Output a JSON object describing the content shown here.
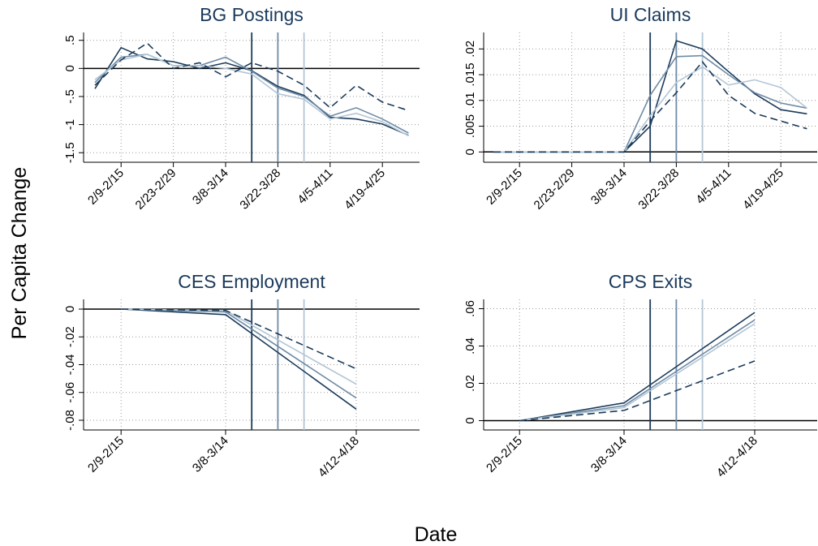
{
  "ylabel": "Per Capita Change",
  "xlabel": "Date",
  "chart_data": [
    {
      "type": "line",
      "title": "BG Postings",
      "categories": [
        null,
        "2/9-2/15",
        null,
        "2/23-2/29",
        null,
        "3/8-3/14",
        null,
        "3/22-3/28",
        null,
        "4/5-4/11",
        null,
        "4/19-4/25",
        null
      ],
      "ylim": [
        -1.67,
        0.64
      ],
      "yticks": [
        {
          "value": 0.5,
          "label": ".5"
        },
        0,
        {
          "value": -0.5,
          "label": "-.5"
        },
        -1,
        -1.5
      ],
      "grid": true,
      "zero_line": true,
      "series": [
        {
          "color": "#1b3b5a",
          "dash": false,
          "values": [
            -0.36,
            0.37,
            0.17,
            0.12,
            0.0,
            0.1,
            -0.04,
            -0.32,
            -0.48,
            -0.87,
            -0.9,
            -0.99,
            -1.19
          ]
        },
        {
          "color": "#6f8ba5",
          "dash": false,
          "values": [
            -0.25,
            0.2,
            0.25,
            0.05,
            0.05,
            0.2,
            -0.05,
            -0.35,
            -0.5,
            -0.85,
            -0.7,
            -0.9,
            -1.15
          ]
        },
        {
          "color": "#b3c6d6",
          "dash": false,
          "values": [
            -0.2,
            0.15,
            0.25,
            0.05,
            0.05,
            0.0,
            -0.1,
            -0.45,
            -0.55,
            -0.9,
            -0.8,
            -0.95,
            -1.2
          ]
        },
        {
          "color": "#1b3b5a",
          "dash": true,
          "values": [
            -0.3,
            0.15,
            0.45,
            0.0,
            0.1,
            -0.15,
            0.1,
            -0.05,
            -0.3,
            -0.7,
            -0.3,
            -0.6,
            -0.75
          ]
        }
      ]
    },
    {
      "type": "line",
      "title": "UI Claims",
      "categories": [
        null,
        "2/9-2/15",
        null,
        "2/23-2/29",
        null,
        "3/8-3/14",
        null,
        "3/22-3/28",
        null,
        "4/5-4/11",
        null,
        "4/19-4/25",
        null
      ],
      "ylim": [
        -0.002,
        0.0232
      ],
      "yticks": [
        0,
        {
          "value": 0.005,
          "label": ".005"
        },
        {
          "value": 0.01,
          "label": ".01"
        },
        {
          "value": 0.015,
          "label": ".015"
        },
        {
          "value": 0.02,
          "label": ".02"
        }
      ],
      "grid": true,
      "zero_line": true,
      "series": [
        {
          "color": "#1b3b5a",
          "dash": false,
          "values": [
            0,
            0,
            0,
            0,
            0,
            0,
            0.005,
            0.0216,
            0.02,
            0.0156,
            0.0113,
            0.0082,
            0.0074
          ]
        },
        {
          "color": "#6f8ba5",
          "dash": false,
          "values": [
            0,
            0,
            0,
            0,
            0,
            0,
            0.011,
            0.0185,
            0.0187,
            0.015,
            0.0115,
            0.0095,
            0.0085
          ]
        },
        {
          "color": "#b3c6d6",
          "dash": false,
          "values": [
            0,
            0,
            0,
            0,
            0,
            0,
            0.007,
            0.0135,
            0.0165,
            0.013,
            0.014,
            0.0125,
            0.0085
          ]
        },
        {
          "color": "#1b3b5a",
          "dash": true,
          "values": [
            0,
            0,
            0,
            0,
            0,
            0,
            0.006,
            0.0115,
            0.0175,
            0.011,
            0.0075,
            0.006,
            0.0045
          ]
        }
      ]
    },
    {
      "type": "line",
      "title": "CES Employment",
      "categories": [
        "2/9-2/15",
        "3/8-3/14",
        "4/12-4/18"
      ],
      "ylim": [
        -0.087,
        0.007
      ],
      "yticks": [
        0,
        {
          "value": -0.02,
          "label": "-.02"
        },
        {
          "value": -0.04,
          "label": "-.04"
        },
        {
          "value": -0.06,
          "label": "-.06"
        },
        {
          "value": -0.08,
          "label": "-.08"
        }
      ],
      "grid": true,
      "zero_line": true,
      "series": [
        {
          "color": "#1b3b5a",
          "dash": false,
          "values": [
            0,
            -0.004,
            -0.072
          ]
        },
        {
          "color": "#6f8ba5",
          "dash": false,
          "values": [
            0,
            -0.002,
            -0.064
          ]
        },
        {
          "color": "#b3c6d6",
          "dash": false,
          "values": [
            0,
            -0.001,
            -0.054
          ]
        },
        {
          "color": "#1b3b5a",
          "dash": true,
          "values": [
            0,
            -0.001,
            -0.043
          ]
        }
      ]
    },
    {
      "type": "line",
      "title": "CPS Exits",
      "categories": [
        "2/9-2/15",
        "3/8-3/14",
        "4/12-4/18"
      ],
      "ylim": [
        -0.005,
        0.065
      ],
      "yticks": [
        0,
        {
          "value": 0.02,
          "label": ".02"
        },
        {
          "value": 0.04,
          "label": ".04"
        },
        {
          "value": 0.06,
          "label": ".06"
        }
      ],
      "grid": true,
      "zero_line": true,
      "series": [
        {
          "color": "#1b3b5a",
          "dash": false,
          "values": [
            0,
            0.0095,
            0.058
          ]
        },
        {
          "color": "#6f8ba5",
          "dash": false,
          "values": [
            0,
            0.008,
            0.054
          ]
        },
        {
          "color": "#b3c6d6",
          "dash": false,
          "values": [
            0,
            0.007,
            0.052
          ]
        },
        {
          "color": "#1b3b5a",
          "dash": true,
          "values": [
            0,
            0.0055,
            0.032
          ]
        }
      ]
    }
  ]
}
